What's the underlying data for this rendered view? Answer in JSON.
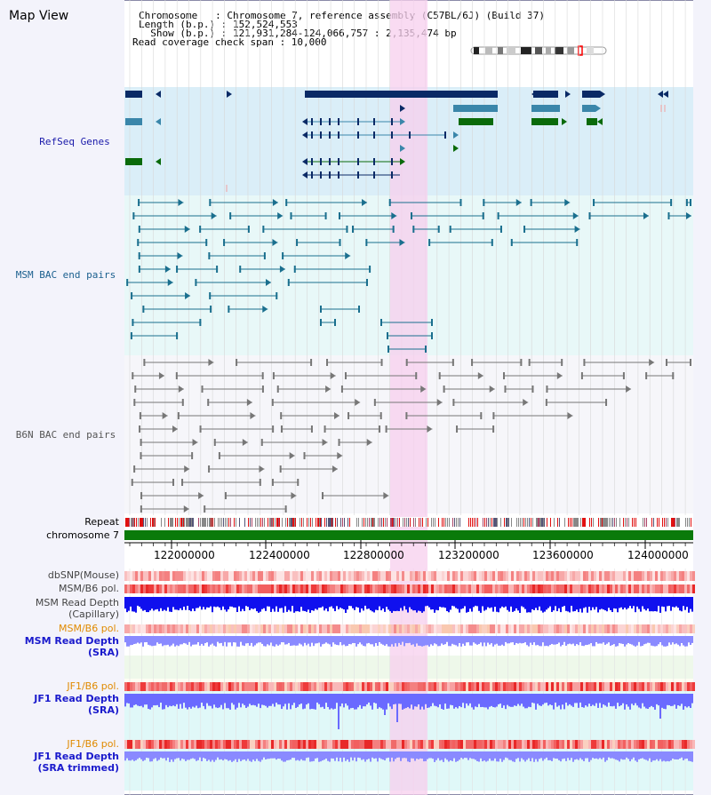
{
  "app": {
    "title": "Map View"
  },
  "header": {
    "chromosome_line": "Chromosome   : Chromosome 7, reference assembly (C57BL/6J) (Build 37)",
    "length_line": "Length (b.p.) : 152,524,553",
    "show_line": "  Show (b.p.) : 121,931,284-124,066,757 : 2,135,474 bp",
    "coverage_line": "Read coverage check span : 10,000"
  },
  "tracks": {
    "refseq": "RefSeq Genes",
    "msm_bac": "MSM BAC end pairs",
    "b6n_bac": "B6N BAC end pairs",
    "repeat": "Repeat",
    "chromosome": "chromosome 7",
    "dbsnp": "dbSNP(Mouse)",
    "msm_b6_pol": "MSM/B6 pol.",
    "msm_depth_cap_1": "MSM Read Depth",
    "msm_depth_cap_2": "(Capillary)",
    "msm_b6_pol_2": "MSM/B6 pol.",
    "msm_depth_sra_1": "MSM Read Depth",
    "msm_depth_sra_2": "(SRA)",
    "jf1_b6_pol": "JF1/B6 pol.",
    "jf1_depth_sra_1": "JF1 Read Depth",
    "jf1_depth_sra_2": "(SRA)",
    "jf1_b6_pol_2": "JF1/B6 pol.",
    "jf1_depth_trim_1": "JF1 Read Depth",
    "jf1_depth_trim_2": "(SRA trimmed)"
  },
  "axis": {
    "ticks": [
      "122000000",
      "122400000",
      "122800000",
      "123200000",
      "123600000",
      "124000000"
    ]
  },
  "colors": {
    "refseq_bg": "#daeef8",
    "msm_bg": "#e8f8f8",
    "b6n_bg": "#f6f6fa",
    "highlight": "#f7d3ef",
    "navy": "#0a2a66",
    "steel": "#3a86aa",
    "green": "#0a6a0a",
    "msm_line": "#1a6f8e",
    "b6n_line": "#777777",
    "depth_blue": "#1010ee",
    "depth_lavender": "#8a8aff",
    "label_blue": "#1a1acc",
    "label_orange": "#e08a00"
  }
}
